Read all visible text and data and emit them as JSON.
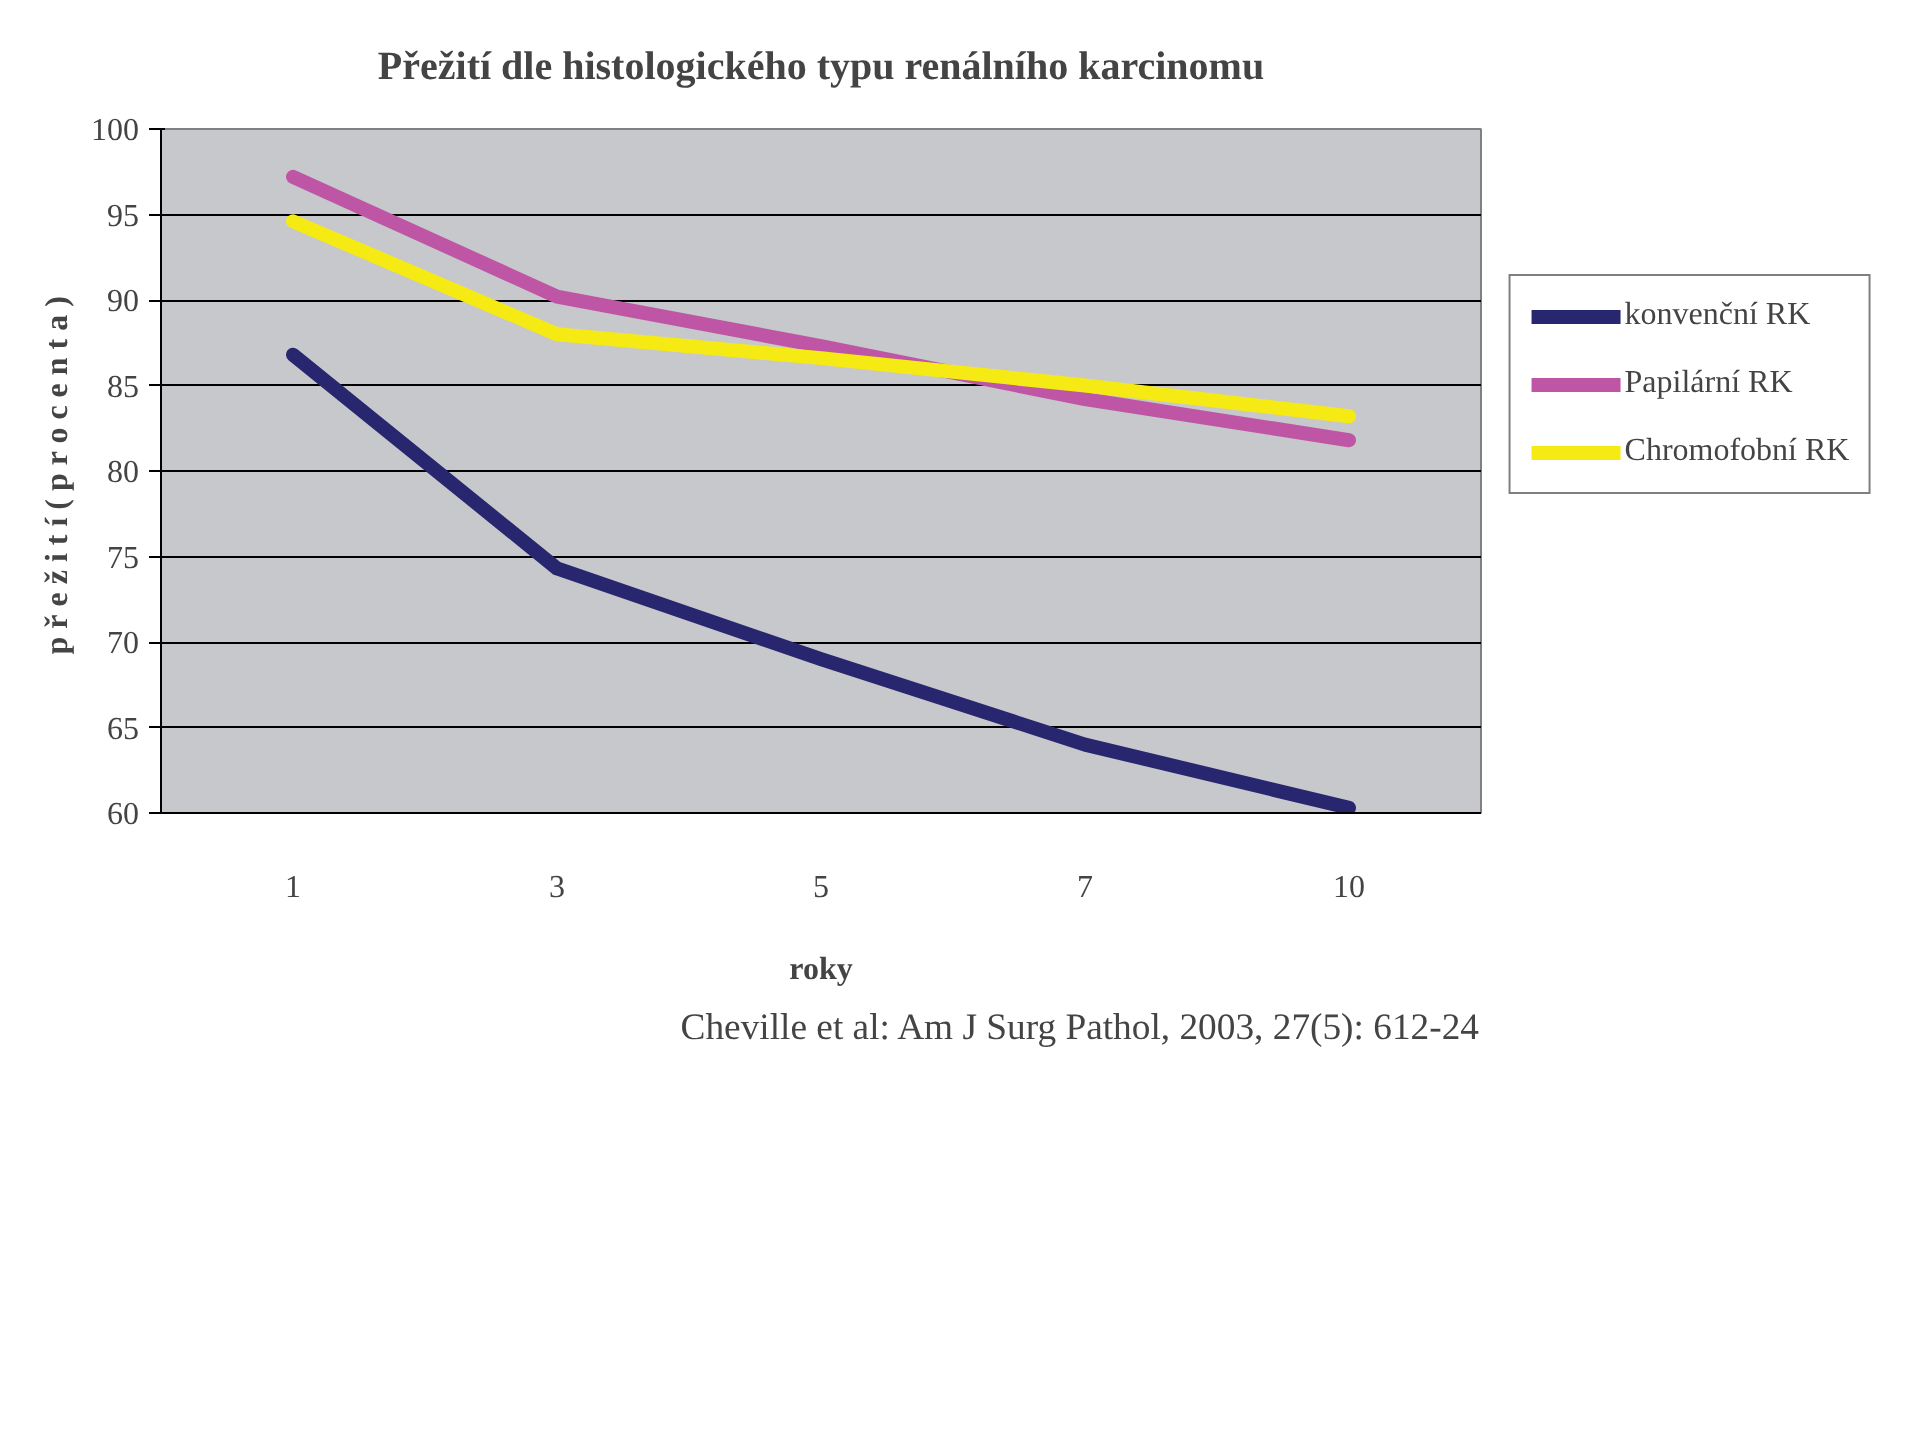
{
  "chart_data": {
    "type": "line",
    "title": "Přežití dle histologického typu renálního karcinomu",
    "xlabel": "roky",
    "ylabel": "p ř e ž i t í  ( p r o c e n t a )",
    "categories": [
      "1",
      "3",
      "5",
      "7",
      "10"
    ],
    "ylim": [
      60,
      100
    ],
    "yticks": [
      60,
      65,
      70,
      75,
      80,
      85,
      90,
      95,
      100
    ],
    "grid": "y",
    "legend": "right",
    "line_style": "solid",
    "marker": "none",
    "series": [
      {
        "name": "konvenční RK",
        "color": "#27266e",
        "values": [
          86.8,
          74.3,
          69,
          64,
          60.3
        ]
      },
      {
        "name": "Papilární RK",
        "color": "#bf55a5",
        "values": [
          97.2,
          90.2,
          87.3,
          84.2,
          81.8
        ]
      },
      {
        "name": "Chromofobní RK",
        "color": "#f5ea14",
        "values": [
          94.6,
          88,
          86.6,
          85,
          83.2
        ]
      }
    ],
    "annotations": [
      "Cheville et al: Am J Surg Pathol, 2003, 27(5): 612-24"
    ]
  }
}
